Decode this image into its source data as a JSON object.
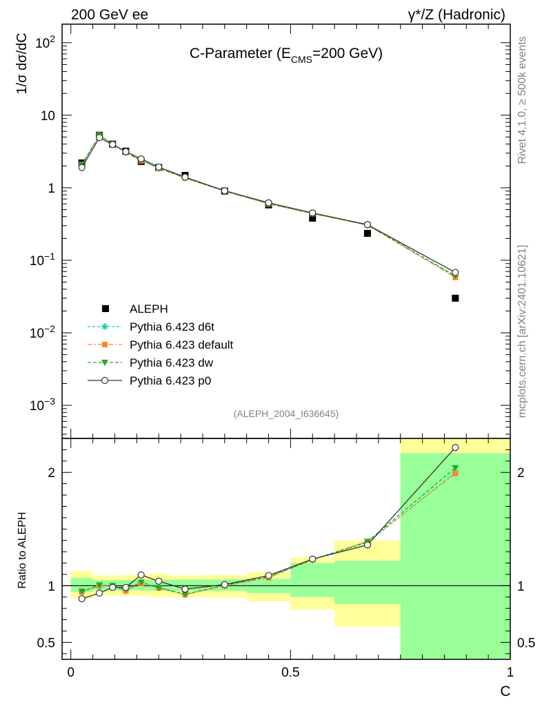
{
  "header": {
    "left": "200 GeV ee",
    "right": "γ*/Z (Hadronic)"
  },
  "side_labels": {
    "rivet": "Rivet 4.1.0, ≥ 500k events",
    "mcplots": "mcplots.cern.ch [arXiv:2401.10621]"
  },
  "chart_data": [
    {
      "type": "scatter",
      "panel": "main",
      "title_main": "C-Parameter (E",
      "title_sub": "CMS",
      "title_end": "=200 GeV)",
      "ylabel": "1/σ  dσ/dC",
      "yscale": "log",
      "ylim": [
        0.00035,
        180
      ],
      "xlim": [
        -0.02,
        1.0
      ],
      "y_tick_labels": [
        {
          "label": "10",
          "sup": "2",
          "value": 100
        },
        {
          "label": "10",
          "sup": "",
          "value": 10
        },
        {
          "label": "1",
          "sup": "",
          "value": 1
        },
        {
          "label": "10",
          "sup": "−1",
          "value": 0.1
        },
        {
          "label": "10",
          "sup": "−2",
          "value": 0.01
        },
        {
          "label": "10",
          "sup": "−3",
          "value": 0.001
        }
      ],
      "analysis_tag": "(ALEPH_2004_I636645)",
      "legend_position": "bottom-left",
      "x": [
        0.025,
        0.065,
        0.095,
        0.125,
        0.16,
        0.2,
        0.26,
        0.35,
        0.45,
        0.55,
        0.675,
        0.875
      ],
      "series": [
        {
          "name": "ALEPH",
          "color": "#000000",
          "values": [
            2.2,
            5.3,
            4.0,
            3.2,
            2.3,
            1.9,
            1.48,
            0.9,
            0.58,
            0.38,
            0.235,
            0.03
          ]
        },
        {
          "name": "Pythia 6.423 d6t",
          "color": "#22ccaa",
          "values": [
            2.05,
            5.3,
            3.98,
            3.05,
            2.38,
            1.87,
            1.37,
            0.9,
            0.6,
            0.44,
            0.305,
            0.06
          ]
        },
        {
          "name": "Pythia 6.423 default",
          "color": "#ff8833",
          "values": [
            2.05,
            5.3,
            4.0,
            3.05,
            2.35,
            1.86,
            1.36,
            0.9,
            0.6,
            0.44,
            0.305,
            0.058
          ]
        },
        {
          "name": "Pythia 6.423 dw",
          "color": "#22aa22",
          "values": [
            2.1,
            5.3,
            4.0,
            3.1,
            2.38,
            1.86,
            1.37,
            0.9,
            0.61,
            0.445,
            0.31,
            0.061
          ]
        },
        {
          "name": "Pythia 6.423 p0",
          "color": "#333333",
          "values": [
            1.9,
            4.9,
            3.95,
            3.15,
            2.5,
            1.93,
            1.4,
            0.91,
            0.62,
            0.45,
            0.31,
            0.068
          ]
        }
      ]
    },
    {
      "type": "scatter",
      "panel": "ratio",
      "ylabel": "Ratio to ALEPH",
      "xlabel": "C",
      "ylim": [
        0.35,
        2.3
      ],
      "xlim": [
        -0.02,
        1.0
      ],
      "y_tick_labels": [
        "2",
        "1",
        "0.5"
      ],
      "y_tick_values": [
        2,
        1,
        0.5
      ],
      "x_tick_labels": [
        "0",
        "0.5",
        "1"
      ],
      "x_tick_values": [
        0,
        0.5,
        1
      ],
      "reference_line": 1,
      "bins": [
        {
          "lo": 0.0,
          "hi": 0.05,
          "stat": [
            0.945,
            1.07
          ],
          "total": [
            0.885,
            1.13
          ]
        },
        {
          "lo": 0.05,
          "hi": 0.08,
          "stat": [
            0.96,
            1.05
          ],
          "total": [
            0.915,
            1.09
          ]
        },
        {
          "lo": 0.08,
          "hi": 0.11,
          "stat": [
            0.96,
            1.05
          ],
          "total": [
            0.915,
            1.09
          ]
        },
        {
          "lo": 0.11,
          "hi": 0.14,
          "stat": [
            0.96,
            1.05
          ],
          "total": [
            0.91,
            1.095
          ]
        },
        {
          "lo": 0.14,
          "hi": 0.18,
          "stat": [
            0.96,
            1.05
          ],
          "total": [
            0.91,
            1.095
          ]
        },
        {
          "lo": 0.18,
          "hi": 0.22,
          "stat": [
            0.955,
            1.055
          ],
          "total": [
            0.895,
            1.11
          ]
        },
        {
          "lo": 0.22,
          "hi": 0.3,
          "stat": [
            0.955,
            1.055
          ],
          "total": [
            0.9,
            1.09
          ]
        },
        {
          "lo": 0.3,
          "hi": 0.4,
          "stat": [
            0.955,
            1.055
          ],
          "total": [
            0.895,
            1.095
          ]
        },
        {
          "lo": 0.4,
          "hi": 0.5,
          "stat": [
            0.935,
            1.06
          ],
          "total": [
            0.86,
            1.12
          ]
        },
        {
          "lo": 0.5,
          "hi": 0.6,
          "stat": [
            0.9,
            1.2
          ],
          "total": [
            0.79,
            1.25
          ]
        },
        {
          "lo": 0.6,
          "hi": 0.75,
          "stat": [
            0.84,
            1.22
          ],
          "total": [
            0.64,
            1.4
          ]
        },
        {
          "lo": 0.75,
          "hi": 1.0,
          "stat": [
            0.35,
            2.17
          ],
          "total": [
            0.35,
            2.3
          ]
        }
      ],
      "x": [
        0.025,
        0.065,
        0.095,
        0.125,
        0.16,
        0.2,
        0.26,
        0.35,
        0.45,
        0.55,
        0.675,
        0.875
      ],
      "series": [
        {
          "name": "Pythia 6.423 d6t",
          "color": "#22ccaa",
          "values": [
            0.945,
            1.0,
            0.995,
            0.955,
            1.03,
            0.985,
            0.925,
            1.0,
            1.075,
            1.23,
            1.38,
            2.0
          ]
        },
        {
          "name": "Pythia 6.423 default",
          "color": "#ff8833",
          "values": [
            0.945,
            1.0,
            1.0,
            0.955,
            1.02,
            0.98,
            0.92,
            1.0,
            1.07,
            1.23,
            1.39,
            1.99
          ]
        },
        {
          "name": "Pythia 6.423 dw",
          "color": "#22aa22",
          "values": [
            0.95,
            1.005,
            1.0,
            0.97,
            1.03,
            0.98,
            0.925,
            1.005,
            1.08,
            1.23,
            1.39,
            2.04
          ]
        },
        {
          "name": "Pythia 6.423 p0",
          "color": "#333333",
          "values": [
            0.885,
            0.935,
            0.985,
            0.985,
            1.095,
            1.04,
            0.97,
            1.01,
            1.09,
            1.235,
            1.36,
            2.22
          ]
        }
      ]
    }
  ]
}
